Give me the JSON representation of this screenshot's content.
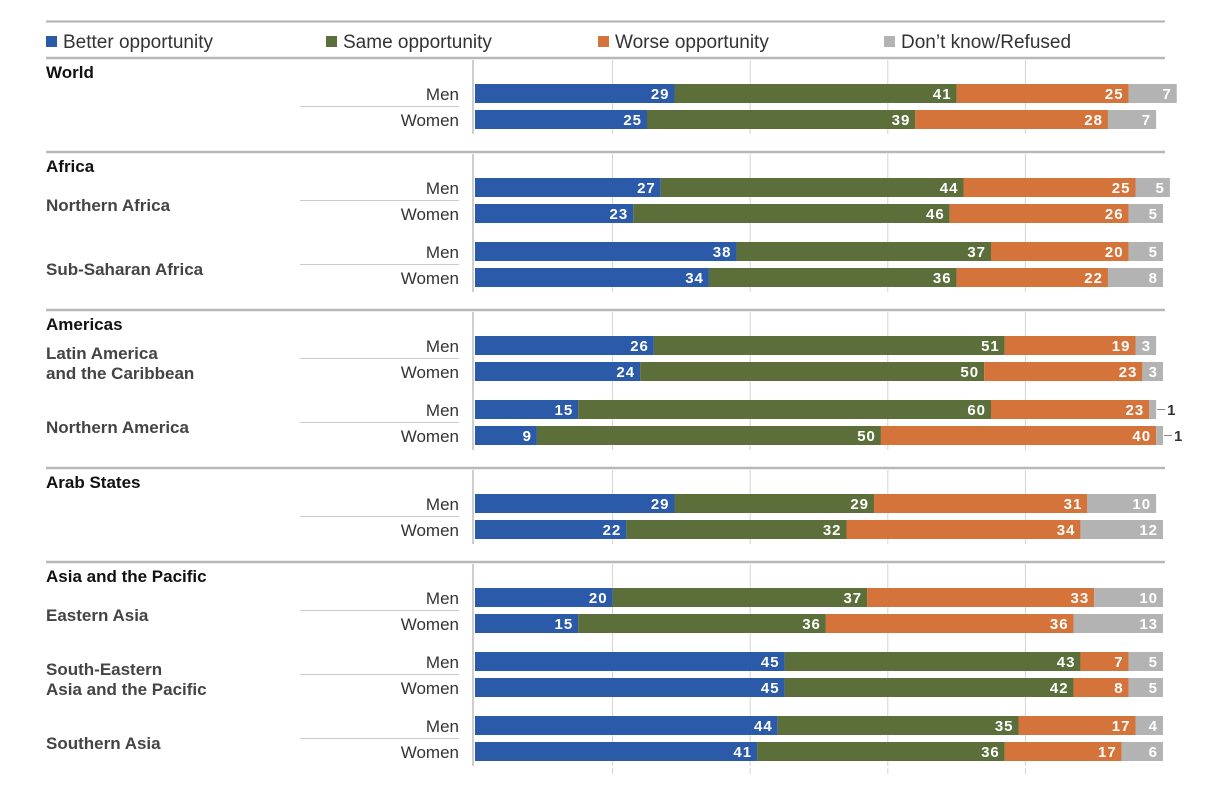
{
  "chart_data": {
    "type": "bar",
    "orientation": "horizontal",
    "stacked": true,
    "xlim": [
      0,
      100
    ],
    "grid": true,
    "legend_position": "top",
    "series": [
      {
        "name": "Better opportunity",
        "color": "#2a5aa8"
      },
      {
        "name": "Same opportunity",
        "color": "#5c6e3a"
      },
      {
        "name": "Worse opportunity",
        "color": "#d4733a"
      },
      {
        "name": "Don’t know/Refused",
        "color": "#b3b3b3"
      }
    ],
    "groups": [
      {
        "name": "World",
        "subgroups": [
          {
            "label": "",
            "rows": [
              {
                "gender": "Men",
                "values": [
                  29,
                  41,
                  25,
                  7
                ]
              },
              {
                "gender": "Women",
                "values": [
                  25,
                  39,
                  28,
                  7
                ]
              }
            ]
          }
        ]
      },
      {
        "name": "Africa",
        "subgroups": [
          {
            "label": "Northern Africa",
            "rows": [
              {
                "gender": "Men",
                "values": [
                  27,
                  44,
                  25,
                  5
                ]
              },
              {
                "gender": "Women",
                "values": [
                  23,
                  46,
                  26,
                  5
                ]
              }
            ]
          },
          {
            "label": "Sub-Saharan Africa",
            "rows": [
              {
                "gender": "Men",
                "values": [
                  38,
                  37,
                  20,
                  5
                ]
              },
              {
                "gender": "Women",
                "values": [
                  34,
                  36,
                  22,
                  8
                ]
              }
            ]
          }
        ]
      },
      {
        "name": "Americas",
        "subgroups": [
          {
            "label": "Latin America and the Caribbean",
            "rows": [
              {
                "gender": "Men",
                "values": [
                  26,
                  51,
                  19,
                  3
                ]
              },
              {
                "gender": "Women",
                "values": [
                  24,
                  50,
                  23,
                  3
                ]
              }
            ]
          },
          {
            "label": "Northern America",
            "rows": [
              {
                "gender": "Men",
                "values": [
                  15,
                  60,
                  23,
                  1
                ]
              },
              {
                "gender": "Women",
                "values": [
                  9,
                  50,
                  40,
                  1
                ]
              }
            ]
          }
        ]
      },
      {
        "name": "Arab States",
        "subgroups": [
          {
            "label": "",
            "rows": [
              {
                "gender": "Men",
                "values": [
                  29,
                  29,
                  31,
                  10
                ]
              },
              {
                "gender": "Women",
                "values": [
                  22,
                  32,
                  34,
                  12
                ]
              }
            ]
          }
        ]
      },
      {
        "name": "Asia and the Pacific",
        "subgroups": [
          {
            "label": "Eastern Asia",
            "rows": [
              {
                "gender": "Men",
                "values": [
                  20,
                  37,
                  33,
                  10
                ]
              },
              {
                "gender": "Women",
                "values": [
                  15,
                  36,
                  36,
                  13
                ]
              }
            ]
          },
          {
            "label": "South-Eastern Asia and the Pacific",
            "rows": [
              {
                "gender": "Men",
                "values": [
                  45,
                  43,
                  7,
                  5
                ]
              },
              {
                "gender": "Women",
                "values": [
                  45,
                  42,
                  8,
                  5
                ]
              }
            ]
          },
          {
            "label": "Southern Asia",
            "rows": [
              {
                "gender": "Men",
                "values": [
                  44,
                  35,
                  17,
                  4
                ]
              },
              {
                "gender": "Women",
                "values": [
                  41,
                  36,
                  17,
                  6
                ]
              }
            ]
          }
        ]
      }
    ]
  }
}
